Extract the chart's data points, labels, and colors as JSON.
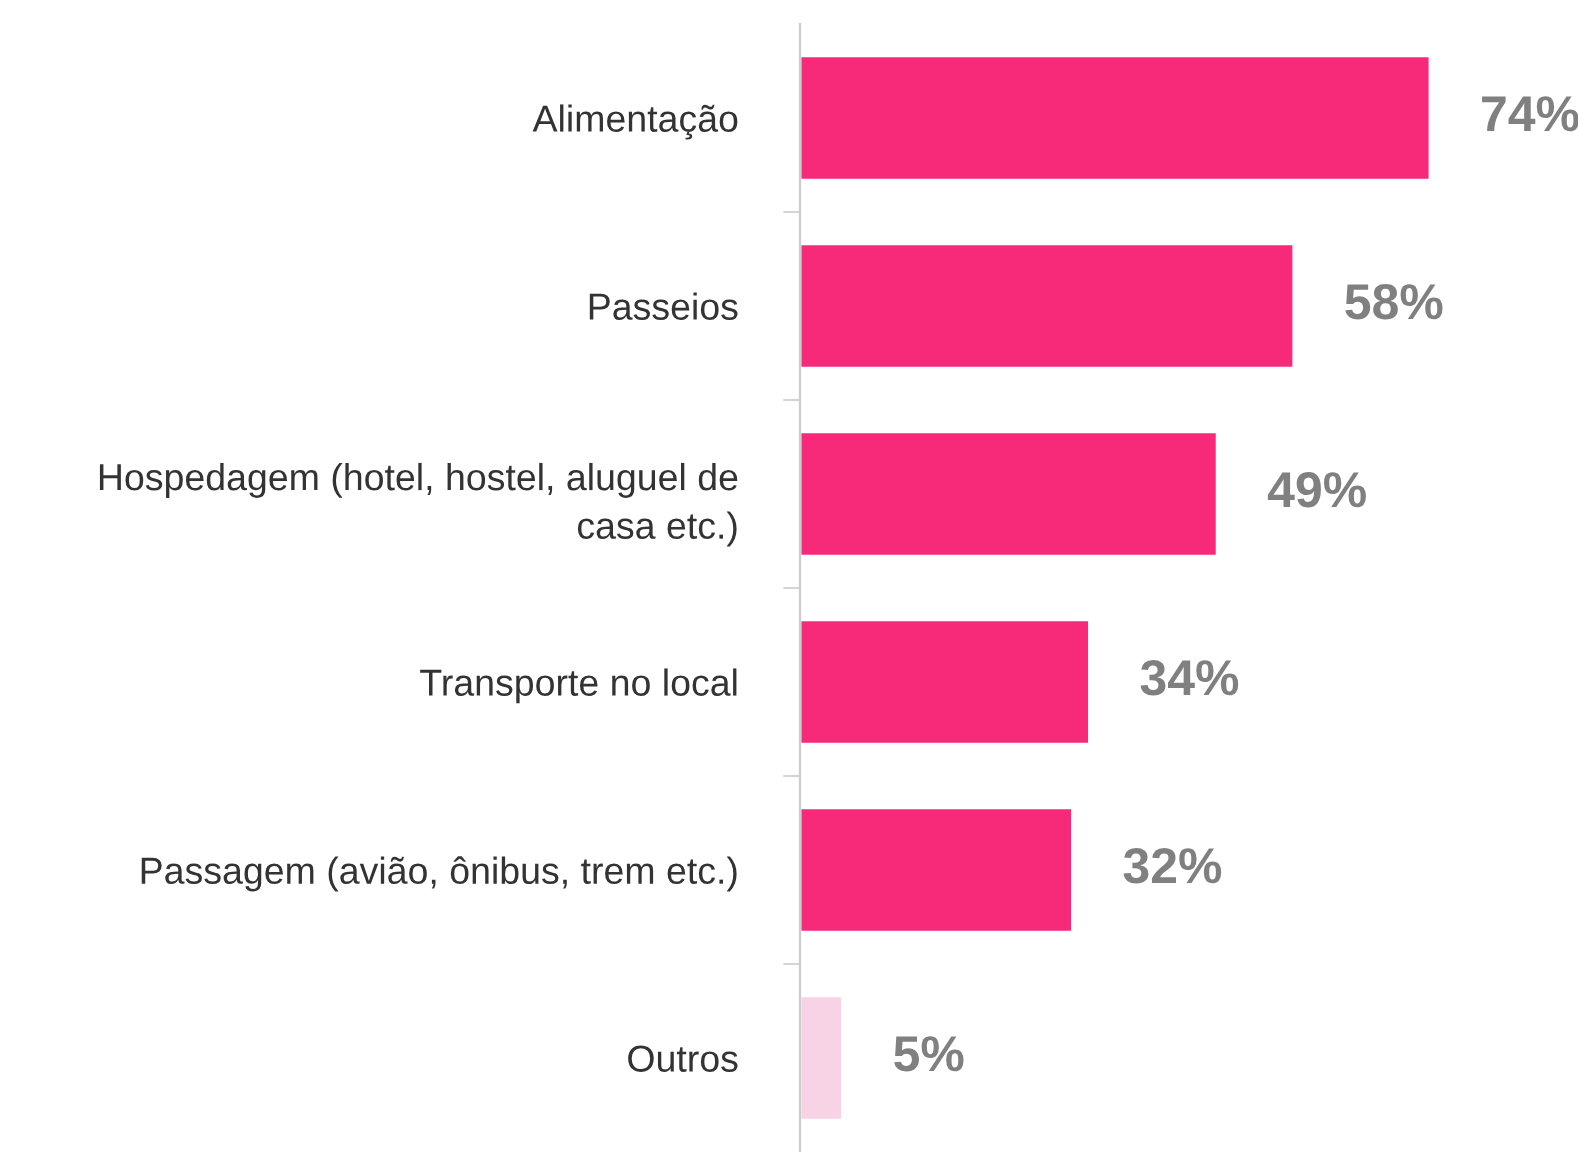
{
  "chart_data": {
    "type": "bar",
    "orientation": "horizontal",
    "categories": [
      "Alimentação",
      "Passeios",
      "Hospedagem (hotel, hostel, aluguel de\ncasa etc.)",
      "Transporte no local",
      "Passagem (avião, ônibus, trem etc.)",
      "Outros"
    ],
    "values": [
      74,
      58,
      49,
      34,
      32,
      5
    ],
    "colors": [
      "#f72a7a",
      "#f72a7a",
      "#f72a7a",
      "#f72a7a",
      "#f72a7a",
      "#f7d3e5"
    ],
    "value_labels": [
      "74%",
      "58%",
      "49%",
      "34%",
      "32%",
      "5%"
    ],
    "grid": false,
    "legend": false
  }
}
